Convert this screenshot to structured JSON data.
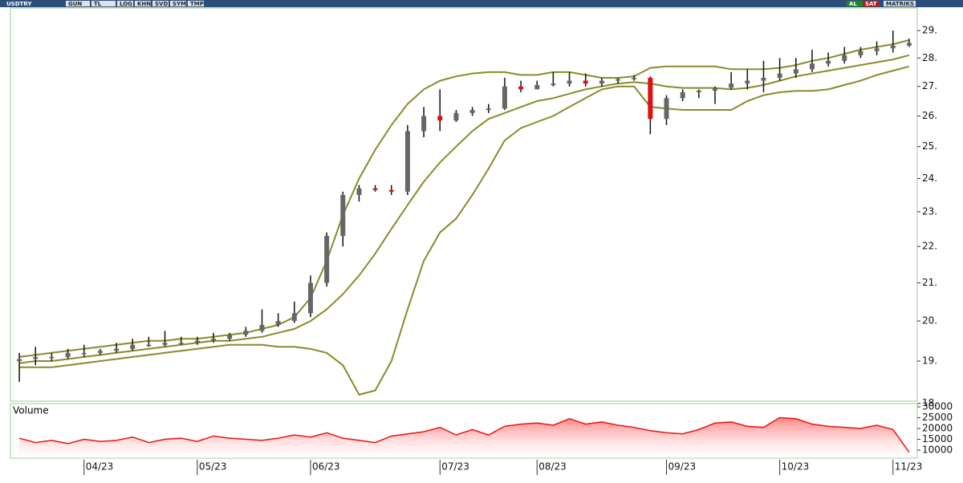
{
  "toolbar": {
    "symbol": "USDTRY",
    "buttons": [
      "GUN",
      "TL",
      "LOG",
      "KHN",
      "SVD",
      "SYM",
      "TMP"
    ],
    "right": [
      "AL",
      "SAT",
      "MATRIKS"
    ]
  },
  "chart_data": {
    "type": "candlestick",
    "log": true,
    "categories": [
      null,
      null,
      null,
      null,
      "04/23",
      null,
      null,
      null,
      null,
      null,
      null,
      "05/23",
      null,
      null,
      null,
      null,
      null,
      null,
      "06/23",
      null,
      null,
      null,
      null,
      null,
      null,
      null,
      "07/23",
      null,
      null,
      null,
      null,
      null,
      "08/23",
      null,
      null,
      null,
      null,
      null,
      null,
      null,
      "09/23",
      null,
      null,
      null,
      null,
      null,
      null,
      "10/23",
      null,
      null,
      null,
      null,
      null,
      null,
      "11/23",
      null
    ],
    "open": [
      19.0,
      19.05,
      19.1,
      19.1,
      19.2,
      19.2,
      19.25,
      19.3,
      19.4,
      19.4,
      19.45,
      19.45,
      19.5,
      19.55,
      19.65,
      19.75,
      19.9,
      20.0,
      20.2,
      21.0,
      22.3,
      23.5,
      23.7,
      23.65,
      23.6,
      25.5,
      26.0,
      25.85,
      26.1,
      26.2,
      26.25,
      27.0,
      26.9,
      27.05,
      27.1,
      27.2,
      27.1,
      27.2,
      27.25,
      27.3,
      25.9,
      26.6,
      26.8,
      26.85,
      26.95,
      27.1,
      27.2,
      27.3,
      27.45,
      27.6,
      27.8,
      27.9,
      28.1,
      28.25,
      28.35,
      28.45
    ],
    "high": [
      19.2,
      19.35,
      19.2,
      19.3,
      19.4,
      19.3,
      19.45,
      19.55,
      19.6,
      19.75,
      19.6,
      19.6,
      19.7,
      19.7,
      19.85,
      20.3,
      20.2,
      20.5,
      21.2,
      22.4,
      23.6,
      23.8,
      23.8,
      23.8,
      25.7,
      26.3,
      26.9,
      26.2,
      26.3,
      26.4,
      27.3,
      27.2,
      27.2,
      27.5,
      27.5,
      27.45,
      27.3,
      27.3,
      27.4,
      27.35,
      26.7,
      26.9,
      26.9,
      27.0,
      27.5,
      27.6,
      27.9,
      28.0,
      28.0,
      28.3,
      28.2,
      28.4,
      28.4,
      28.6,
      29.0,
      28.7
    ],
    "low": [
      18.5,
      18.9,
      19.0,
      19.05,
      19.1,
      19.15,
      19.2,
      19.25,
      19.35,
      19.35,
      19.4,
      19.4,
      19.45,
      19.5,
      19.6,
      19.7,
      19.85,
      19.95,
      20.1,
      20.9,
      22.0,
      23.3,
      23.6,
      23.5,
      23.5,
      25.3,
      25.5,
      25.8,
      26.0,
      26.1,
      26.2,
      26.8,
      26.9,
      27.0,
      27.0,
      27.0,
      27.0,
      27.1,
      27.2,
      25.4,
      25.7,
      26.5,
      26.6,
      26.4,
      26.9,
      26.9,
      26.8,
      27.2,
      27.3,
      27.5,
      27.7,
      27.8,
      28.0,
      28.1,
      28.2,
      28.4
    ],
    "close": [
      19.05,
      19.1,
      19.1,
      19.2,
      19.2,
      19.25,
      19.3,
      19.4,
      19.4,
      19.45,
      19.45,
      19.5,
      19.55,
      19.65,
      19.75,
      19.9,
      20.0,
      20.2,
      21.0,
      22.3,
      23.5,
      23.7,
      23.65,
      23.6,
      25.5,
      26.0,
      25.85,
      26.1,
      26.2,
      26.25,
      27.0,
      26.9,
      27.05,
      27.1,
      27.2,
      27.1,
      27.2,
      27.25,
      27.3,
      25.9,
      26.6,
      26.8,
      26.85,
      26.95,
      27.1,
      27.2,
      27.3,
      27.45,
      27.6,
      27.8,
      27.9,
      28.1,
      28.25,
      28.35,
      28.45,
      28.55
    ],
    "up_color": "#666666",
    "down_color": "#dd1111",
    "wick_color": "#111111",
    "bands": {
      "color": "#8b8a2a",
      "upper": [
        19.1,
        19.15,
        19.2,
        19.25,
        19.3,
        19.35,
        19.4,
        19.45,
        19.5,
        19.5,
        19.55,
        19.55,
        19.6,
        19.65,
        19.7,
        19.8,
        19.9,
        20.1,
        20.6,
        21.6,
        22.9,
        24.0,
        24.9,
        25.7,
        26.4,
        26.9,
        27.2,
        27.35,
        27.45,
        27.5,
        27.5,
        27.4,
        27.4,
        27.5,
        27.5,
        27.4,
        27.3,
        27.3,
        27.35,
        27.65,
        27.7,
        27.7,
        27.7,
        27.7,
        27.6,
        27.6,
        27.6,
        27.65,
        27.75,
        27.9,
        28.0,
        28.15,
        28.3,
        28.4,
        28.5,
        28.65
      ],
      "middle": [
        18.95,
        19.0,
        19.0,
        19.05,
        19.1,
        19.15,
        19.2,
        19.25,
        19.3,
        19.35,
        19.4,
        19.45,
        19.5,
        19.5,
        19.55,
        19.6,
        19.7,
        19.8,
        20.0,
        20.3,
        20.7,
        21.2,
        21.8,
        22.5,
        23.2,
        23.9,
        24.5,
        25.0,
        25.5,
        25.9,
        26.1,
        26.3,
        26.5,
        26.6,
        26.75,
        26.9,
        27.0,
        27.1,
        27.15,
        27.1,
        27.0,
        26.95,
        26.95,
        26.95,
        26.9,
        26.95,
        27.05,
        27.2,
        27.35,
        27.45,
        27.55,
        27.65,
        27.75,
        27.85,
        27.95,
        28.1
      ],
      "lower": [
        18.85,
        18.85,
        18.85,
        18.9,
        18.95,
        19.0,
        19.05,
        19.1,
        19.15,
        19.2,
        19.25,
        19.3,
        19.35,
        19.4,
        19.4,
        19.4,
        19.35,
        19.35,
        19.3,
        19.2,
        18.9,
        18.2,
        18.3,
        19.0,
        20.3,
        21.6,
        22.4,
        22.8,
        23.5,
        24.3,
        25.2,
        25.6,
        25.8,
        26.0,
        26.3,
        26.6,
        26.9,
        27.0,
        27.0,
        26.3,
        26.25,
        26.2,
        26.2,
        26.2,
        26.2,
        26.5,
        26.7,
        26.8,
        26.85,
        26.85,
        26.9,
        27.05,
        27.2,
        27.4,
        27.55,
        27.7
      ]
    },
    "ylim": [
      18.05,
      29.85
    ],
    "yticks": [
      {
        "value": 18,
        "label": "18."
      },
      {
        "value": 19,
        "label": "19."
      },
      {
        "value": 20,
        "label": "20."
      },
      {
        "value": 21,
        "label": "21."
      },
      {
        "value": 22,
        "label": "22."
      },
      {
        "value": 23,
        "label": "23."
      },
      {
        "value": 24,
        "label": "24."
      },
      {
        "value": 25,
        "label": "25."
      },
      {
        "value": 26,
        "label": "26."
      },
      {
        "value": 27,
        "label": "27."
      },
      {
        "value": 28,
        "label": "28."
      },
      {
        "value": 29,
        "label": "29."
      }
    ],
    "volume": {
      "label": "Volume",
      "color": "#ee1111",
      "values": [
        15500,
        13500,
        14500,
        13000,
        15000,
        14000,
        14500,
        16000,
        13500,
        15000,
        15500,
        14000,
        16500,
        15500,
        15000,
        14500,
        15500,
        17000,
        16000,
        18000,
        15500,
        14500,
        13500,
        16500,
        17500,
        18500,
        20500,
        17000,
        19500,
        17000,
        21000,
        22000,
        22500,
        21500,
        24500,
        22000,
        23000,
        21500,
        20500,
        19000,
        18000,
        17500,
        19500,
        22500,
        23000,
        21000,
        20500,
        25000,
        24500,
        22000,
        21000,
        20500,
        20000,
        21500,
        19500,
        9000
      ],
      "ylim": [
        6300,
        31500
      ],
      "yticks": [
        10000,
        15000,
        20000,
        25000,
        30000
      ]
    }
  }
}
